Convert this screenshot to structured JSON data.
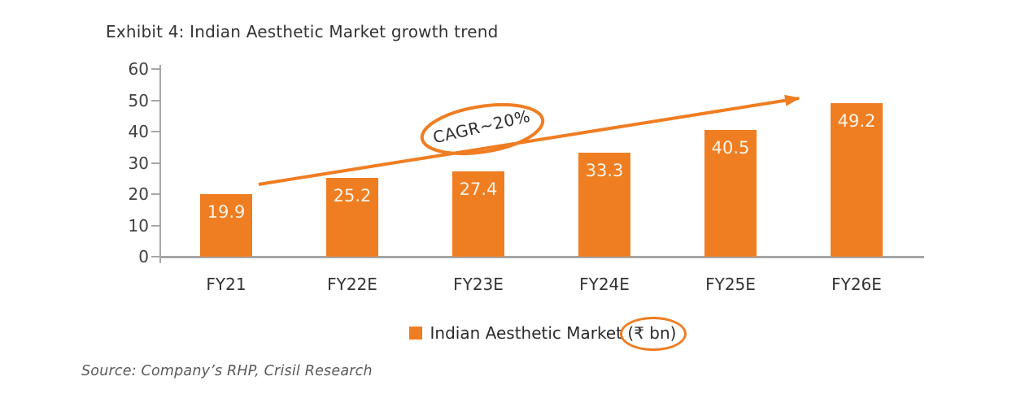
{
  "title": "Exhibit 4: Indian Aesthetic Market growth trend",
  "source_note": "Source: Company’s RHP, Crisil Research",
  "annotation": {
    "cagr_label": "CAGR~20%"
  },
  "legend": {
    "prefix": "Indian Aesthetic Market ",
    "circled": "(₹ bn)"
  },
  "colors": {
    "accent": "#EF7D22",
    "axis": "#A6A6A6",
    "title_text": "#333333",
    "tick_text": "#404040",
    "value_label_text": "#FBF4E6",
    "source_text": "#595959"
  },
  "chart_data": {
    "type": "bar",
    "title": "Exhibit 4: Indian Aesthetic Market growth trend",
    "categories": [
      "FY21",
      "FY22E",
      "FY23E",
      "FY24E",
      "FY25E",
      "FY26E"
    ],
    "values": [
      19.9,
      25.2,
      27.4,
      33.3,
      40.5,
      49.2
    ],
    "series_name": "Indian Aesthetic Market (₹ bn)",
    "xlabel": "",
    "ylabel": "",
    "ylim": [
      0,
      60
    ],
    "yticks": [
      0,
      10,
      20,
      30,
      40,
      50,
      60
    ],
    "grid": false,
    "legend_position": "bottom",
    "annotations": [
      "CAGR~20%"
    ],
    "data_labels": "inside-end",
    "bar_color": "#EF7D22"
  }
}
